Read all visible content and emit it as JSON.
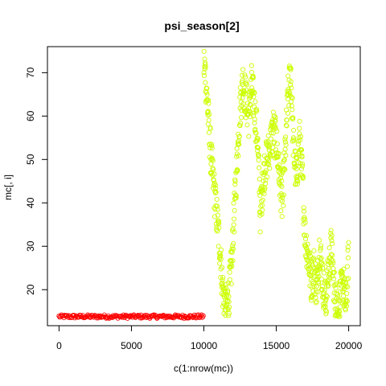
{
  "chart_data": {
    "type": "scatter",
    "title": "psi_season[2]",
    "xlabel": "c(1:nrow(mc))",
    "ylabel": "mc[, i]",
    "xlim": [
      -800,
      20800
    ],
    "ylim": [
      11.7,
      76.0
    ],
    "x_ticks": [
      0,
      5000,
      10000,
      15000,
      20000
    ],
    "y_ticks": [
      20,
      30,
      40,
      50,
      60,
      70
    ],
    "grid": false,
    "legend": "none",
    "series": [
      {
        "color": "#ff0000",
        "x": [
          1,
          10000
        ],
        "y": [
          13.8,
          13.8
        ]
      },
      {
        "color": "#ccff00",
        "x": [
          10000,
          10100,
          10300,
          10500,
          10800,
          11100,
          11300,
          11500,
          11700,
          11900,
          12100,
          12300,
          12500,
          12700,
          12900,
          13100,
          13300,
          13500,
          13700,
          13900,
          14000,
          14200,
          14500,
          14800,
          15000,
          15200,
          15400,
          15600,
          15800,
          16000,
          16200,
          16400,
          16600,
          16800,
          17000,
          17200,
          17400,
          17600,
          17800,
          18000,
          18200,
          18400,
          18600,
          18800,
          19000,
          19200,
          19400,
          19600,
          19800,
          20000
        ],
        "y": [
          72,
          70,
          60,
          50,
          40,
          30,
          20,
          16,
          18,
          25,
          38,
          50,
          62,
          68,
          64,
          60,
          67,
          62,
          55,
          38,
          42,
          48,
          52,
          57,
          54,
          47,
          40,
          50,
          64,
          70,
          52,
          45,
          55,
          46,
          32,
          28,
          22,
          25,
          20,
          30,
          22,
          17,
          24,
          30,
          20,
          16,
          18,
          22,
          16,
          28
        ]
      }
    ]
  }
}
